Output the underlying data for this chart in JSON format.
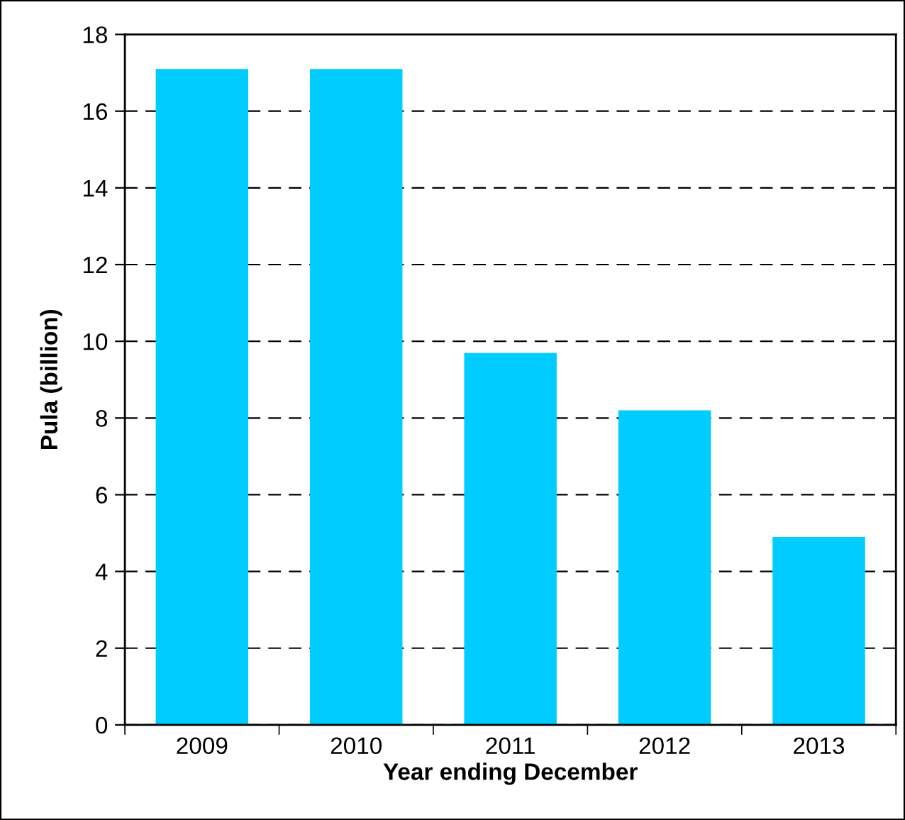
{
  "chart_data": {
    "type": "bar",
    "xlabel": "Year ending December",
    "ylabel": "Pula (billion)",
    "categories": [
      "2009",
      "2010",
      "2011",
      "2012",
      "2013"
    ],
    "values": [
      17.1,
      17.1,
      9.7,
      8.2,
      4.9
    ],
    "color": "#00ccff",
    "ylim": [
      0,
      18
    ],
    "yticks": [
      0,
      2,
      4,
      6,
      8,
      10,
      12,
      14,
      16,
      18
    ],
    "grid": "y",
    "line_style": "dashed"
  }
}
